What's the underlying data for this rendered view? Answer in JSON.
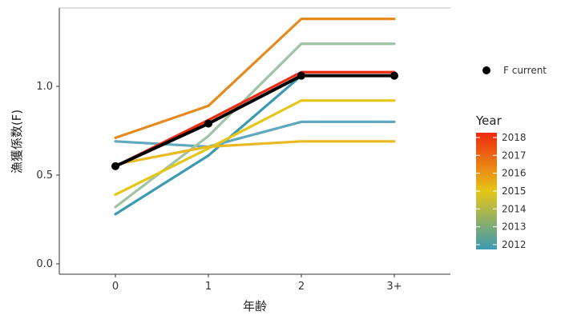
{
  "chart_data": {
    "type": "line",
    "xlabel": "年齢",
    "ylabel": "漁獲係数(F)",
    "categories": [
      "0",
      "1",
      "2",
      "3+"
    ],
    "ylim": [
      0,
      1.38
    ],
    "yticks": [
      0.0,
      0.5,
      1.0
    ],
    "ytick_labels": [
      "0.0",
      "0.5",
      "1.0"
    ],
    "grid": false,
    "series": [
      {
        "year": 2012,
        "color": "#3b9ab2",
        "values": [
          0.28,
          0.61,
          1.06,
          1.06
        ]
      },
      {
        "year": 2013,
        "color": "#5fa8bf",
        "values": [
          0.69,
          0.66,
          0.8,
          0.8
        ]
      },
      {
        "year": 2014,
        "color": "#9fc3a4",
        "values": [
          0.32,
          0.72,
          1.24,
          1.24
        ]
      },
      {
        "year": 2015,
        "color": "#e6c619",
        "values": [
          0.39,
          0.65,
          0.92,
          0.92
        ]
      },
      {
        "year": 2016,
        "color": "#e8b923",
        "values": [
          0.56,
          0.66,
          0.69,
          0.69
        ]
      },
      {
        "year": 2017,
        "color": "#e58a1f",
        "values": [
          0.71,
          0.89,
          1.38,
          1.38
        ]
      },
      {
        "year": 2018,
        "color": "#ee2a0f",
        "values": [
          0.55,
          0.81,
          1.08,
          1.08
        ]
      }
    ],
    "current": {
      "name": "F current",
      "color": "#000000",
      "values": [
        0.55,
        0.79,
        1.06,
        1.06
      ]
    },
    "legend": {
      "position": "right",
      "point_label": "F current",
      "color_title": "Year",
      "color_labels": [
        "2018",
        "2017",
        "2016",
        "2015",
        "2014",
        "2013",
        "2012"
      ],
      "gradient_top": "#ee2a0f",
      "gradient_mid": "#e6c619",
      "gradient_bottom": "#3b9ab2"
    }
  }
}
